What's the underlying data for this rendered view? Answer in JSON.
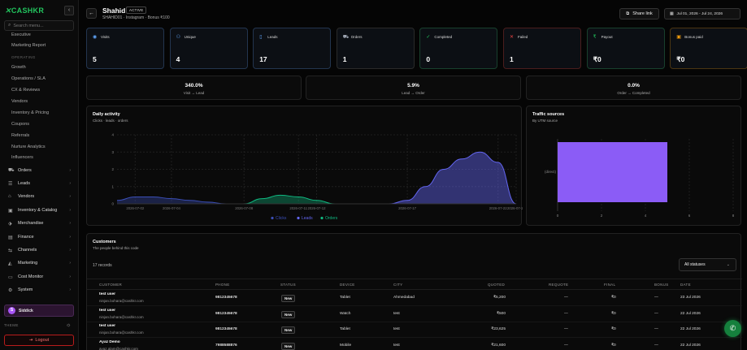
{
  "brand": {
    "name": "CASHKR"
  },
  "sidebar": {
    "search_placeholder": "Search menu...",
    "links": [
      {
        "label": "Executive"
      },
      {
        "label": "Marketing Report"
      }
    ],
    "section_operating": "OPERATING",
    "operating": [
      {
        "label": "Growth"
      },
      {
        "label": "Operations / SLA"
      },
      {
        "label": "CX & Reviews"
      },
      {
        "label": "Vendors"
      },
      {
        "label": "Inventory & Pricing"
      },
      {
        "label": "Coupons"
      },
      {
        "label": "Referrals"
      },
      {
        "label": "Nurture Analytics"
      },
      {
        "label": "Influencers"
      }
    ],
    "groups": [
      {
        "label": "Orders",
        "icon": "cart-icon"
      },
      {
        "label": "Leads",
        "icon": "leads-icon"
      },
      {
        "label": "Vendors",
        "icon": "store-icon"
      },
      {
        "label": "Inventory & Catalog",
        "icon": "box-icon"
      },
      {
        "label": "Merchandise",
        "icon": "tag-icon"
      },
      {
        "label": "Finance",
        "icon": "finance-icon"
      },
      {
        "label": "Channels",
        "icon": "channels-icon"
      },
      {
        "label": "Marketing",
        "icon": "megaphone-icon"
      },
      {
        "label": "Cost Monitor",
        "icon": "monitor-icon"
      },
      {
        "label": "System",
        "icon": "settings-icon"
      }
    ],
    "user": {
      "initial": "S",
      "name": "Siddick"
    },
    "theme_label": "THEME",
    "logout_label": "Logout"
  },
  "header": {
    "title": "Shahid",
    "status": "ACTIVE",
    "subtitle": "SHAHID01 · Instagram · Bonus ₹100",
    "share_label": "Share link",
    "date_range": "Jul 01, 2026 - Jul 24, 2026"
  },
  "stats": [
    {
      "label": "Visits",
      "value": "5",
      "icon": "eye-icon",
      "color": "#60a5fa"
    },
    {
      "label": "Unique",
      "value": "4",
      "icon": "users-icon",
      "color": "#60a5fa"
    },
    {
      "label": "Leads",
      "value": "17",
      "icon": "document-icon",
      "color": "#60a5fa"
    },
    {
      "label": "Orders",
      "value": "1",
      "icon": "cart-icon",
      "color": "#9ca3af"
    },
    {
      "label": "Completed",
      "value": "0",
      "icon": "check-circle-icon",
      "color": "#22c55e"
    },
    {
      "label": "Failed",
      "value": "1",
      "icon": "x-circle-icon",
      "color": "#ef4444"
    },
    {
      "label": "Payout",
      "value": "₹0",
      "icon": "rupee-icon",
      "color": "#22c55e"
    },
    {
      "label": "Bonus paid",
      "value": "₹0",
      "icon": "gift-icon",
      "color": "#f59e0b"
    }
  ],
  "ratios": [
    {
      "value": "340.0%",
      "label": "Visit → Lead"
    },
    {
      "value": "5.9%",
      "label": "Lead → Order"
    },
    {
      "value": "0.0%",
      "label": "Order → Completed"
    }
  ],
  "daily": {
    "title": "Daily activity",
    "subtitle": "Clicks · leads · orders"
  },
  "traffic": {
    "title": "Traffic sources",
    "subtitle": "By UTM source"
  },
  "chart_data": [
    {
      "type": "area",
      "x": [
        "2026-07-01",
        "2026-07-02",
        "2026-07-03",
        "2026-07-04",
        "2026-07-05",
        "2026-07-06",
        "2026-07-07",
        "2026-07-08",
        "2026-07-09",
        "2026-07-10",
        "2026-07-11",
        "2026-07-12",
        "2026-07-13",
        "2026-07-14",
        "2026-07-15",
        "2026-07-16",
        "2026-07-17",
        "2026-07-18",
        "2026-07-19",
        "2026-07-20",
        "2026-07-21",
        "2026-07-22",
        "2026-07-23"
      ],
      "x_ticks": [
        "2026-07-02",
        "2026-07-04",
        "2026-07-08",
        "2026-07-11",
        "2026-07-12",
        "2026-07-17",
        "2026-07-22",
        "2026-07-23"
      ],
      "series": [
        {
          "name": "Clicks",
          "color": "#3b4fb8",
          "values": [
            0.2,
            0.4,
            0.4,
            0.3,
            0.2,
            0.1,
            0,
            0,
            0,
            0,
            0,
            0,
            0,
            0,
            0,
            0,
            0,
            0,
            0,
            0,
            0,
            0,
            0
          ]
        },
        {
          "name": "Leads",
          "color": "#6366f1",
          "values": [
            0,
            0,
            0,
            0,
            0,
            0,
            0,
            0,
            0,
            0,
            0,
            0,
            0,
            0,
            0,
            0,
            0.2,
            1,
            2,
            2.6,
            3,
            2.4,
            0
          ]
        },
        {
          "name": "Orders",
          "color": "#10b981",
          "values": [
            0,
            0,
            0,
            0,
            0,
            0,
            0,
            0,
            0.3,
            0.5,
            0.4,
            0.2,
            0,
            0,
            0,
            0,
            0,
            0,
            0,
            0,
            0,
            0,
            0
          ]
        }
      ],
      "ylim": [
        0,
        4
      ],
      "yticks": [
        "0",
        "1",
        "2",
        "3",
        "4"
      ]
    },
    {
      "type": "bar",
      "orientation": "horizontal",
      "categories": [
        "(direct)"
      ],
      "values": [
        5
      ],
      "xlim": [
        0,
        8
      ],
      "xticks": [
        "0",
        "2",
        "4",
        "6",
        "8"
      ],
      "color": "#8b5cf6"
    }
  ],
  "customers": {
    "title": "Customers",
    "subtitle": "The people behind this code",
    "records": "17 records",
    "status_filter": "All statuses",
    "columns": {
      "customer": "CUSTOMER",
      "phone": "PHONE",
      "status": "STATUS",
      "device": "DEVICE",
      "city": "CITY",
      "quoted": "QUOTED",
      "requote": "REQUOTE",
      "final": "FINAL",
      "bonus": "BONUS",
      "date": "DATE"
    },
    "rows": [
      {
        "name": "test user",
        "email": "ninjan.bohara@cashkr.com",
        "phone": "9812345678",
        "status": "New",
        "device": "Tablet",
        "city": "Ahmedabad",
        "quoted": "₹5,200",
        "requote": "—",
        "final": "₹0",
        "bonus": "—",
        "date": "23 Jul 2026"
      },
      {
        "name": "test user",
        "email": "ninjan.bohara@cashkr.com",
        "phone": "9812345678",
        "status": "New",
        "device": "Watch",
        "city": "test",
        "quoted": "₹500",
        "requote": "—",
        "final": "₹0",
        "bonus": "—",
        "date": "22 Jul 2026"
      },
      {
        "name": "test user",
        "email": "ninjan.bohara@cashkr.com",
        "phone": "9812345678",
        "status": "New",
        "device": "Tablet",
        "city": "test",
        "quoted": "₹23,625",
        "requote": "—",
        "final": "₹0",
        "bonus": "—",
        "date": "22 Jul 2026"
      },
      {
        "name": "Ayaz Demo",
        "email": "ayaz.alam@cashkr.com",
        "phone": "7988588876",
        "status": "New",
        "device": "Mobile",
        "city": "test",
        "quoted": "₹21,600",
        "requote": "—",
        "final": "₹0",
        "bonus": "—",
        "date": "22 Jul 2026"
      }
    ]
  }
}
